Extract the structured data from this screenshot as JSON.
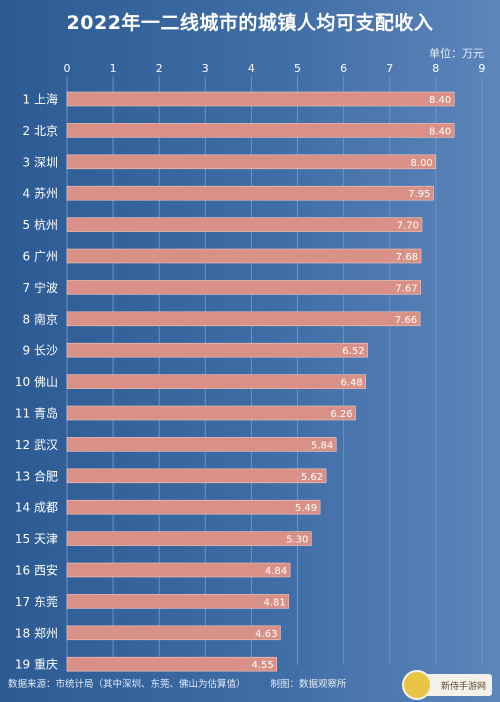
{
  "chart_data": {
    "type": "bar",
    "orientation": "horizontal",
    "title": "2022年一二线城市的城镇人均可支配收入",
    "unit_label": "单位：万元",
    "xlim": [
      0,
      9
    ],
    "x_ticks": [
      "0",
      "1",
      "2",
      "3",
      "4",
      "5",
      "6",
      "7",
      "8",
      "9"
    ],
    "grid": true,
    "categories": [
      "1 上海",
      "2 北京",
      "3 深圳",
      "4 苏州",
      "5 杭州",
      "6 广州",
      "7 宁波",
      "8 南京",
      "9 长沙",
      "10 佛山",
      "11 青岛",
      "12 武汉",
      "13 合肥",
      "14 成都",
      "15 天津",
      "16 西安",
      "17 东莞",
      "18 郑州",
      "19 重庆"
    ],
    "values": [
      8.4,
      8.4,
      8.0,
      7.95,
      7.7,
      7.68,
      7.67,
      7.66,
      6.52,
      6.48,
      6.26,
      5.84,
      5.62,
      5.49,
      5.3,
      4.84,
      4.81,
      4.63,
      4.55
    ],
    "value_labels": [
      "8.40",
      "8.40",
      "8.00",
      "7.95",
      "7.70",
      "7.68",
      "7.67",
      "7.66",
      "6.52",
      "6.48",
      "6.26",
      "5.84",
      "5.62",
      "5.49",
      "5.30",
      "4.84",
      "4.81",
      "4.63",
      "4.55"
    ],
    "colors": {
      "bar": "#d99187",
      "bar_stroke": "#f2c6bd",
      "grid": "#6f93c2"
    }
  },
  "footer": {
    "source": "数据来源：市统计局（其中深圳、东莞、佛山为估算值）",
    "credit": "制图：数据观察所"
  },
  "watermark": {
    "text": "新侍手游网"
  }
}
